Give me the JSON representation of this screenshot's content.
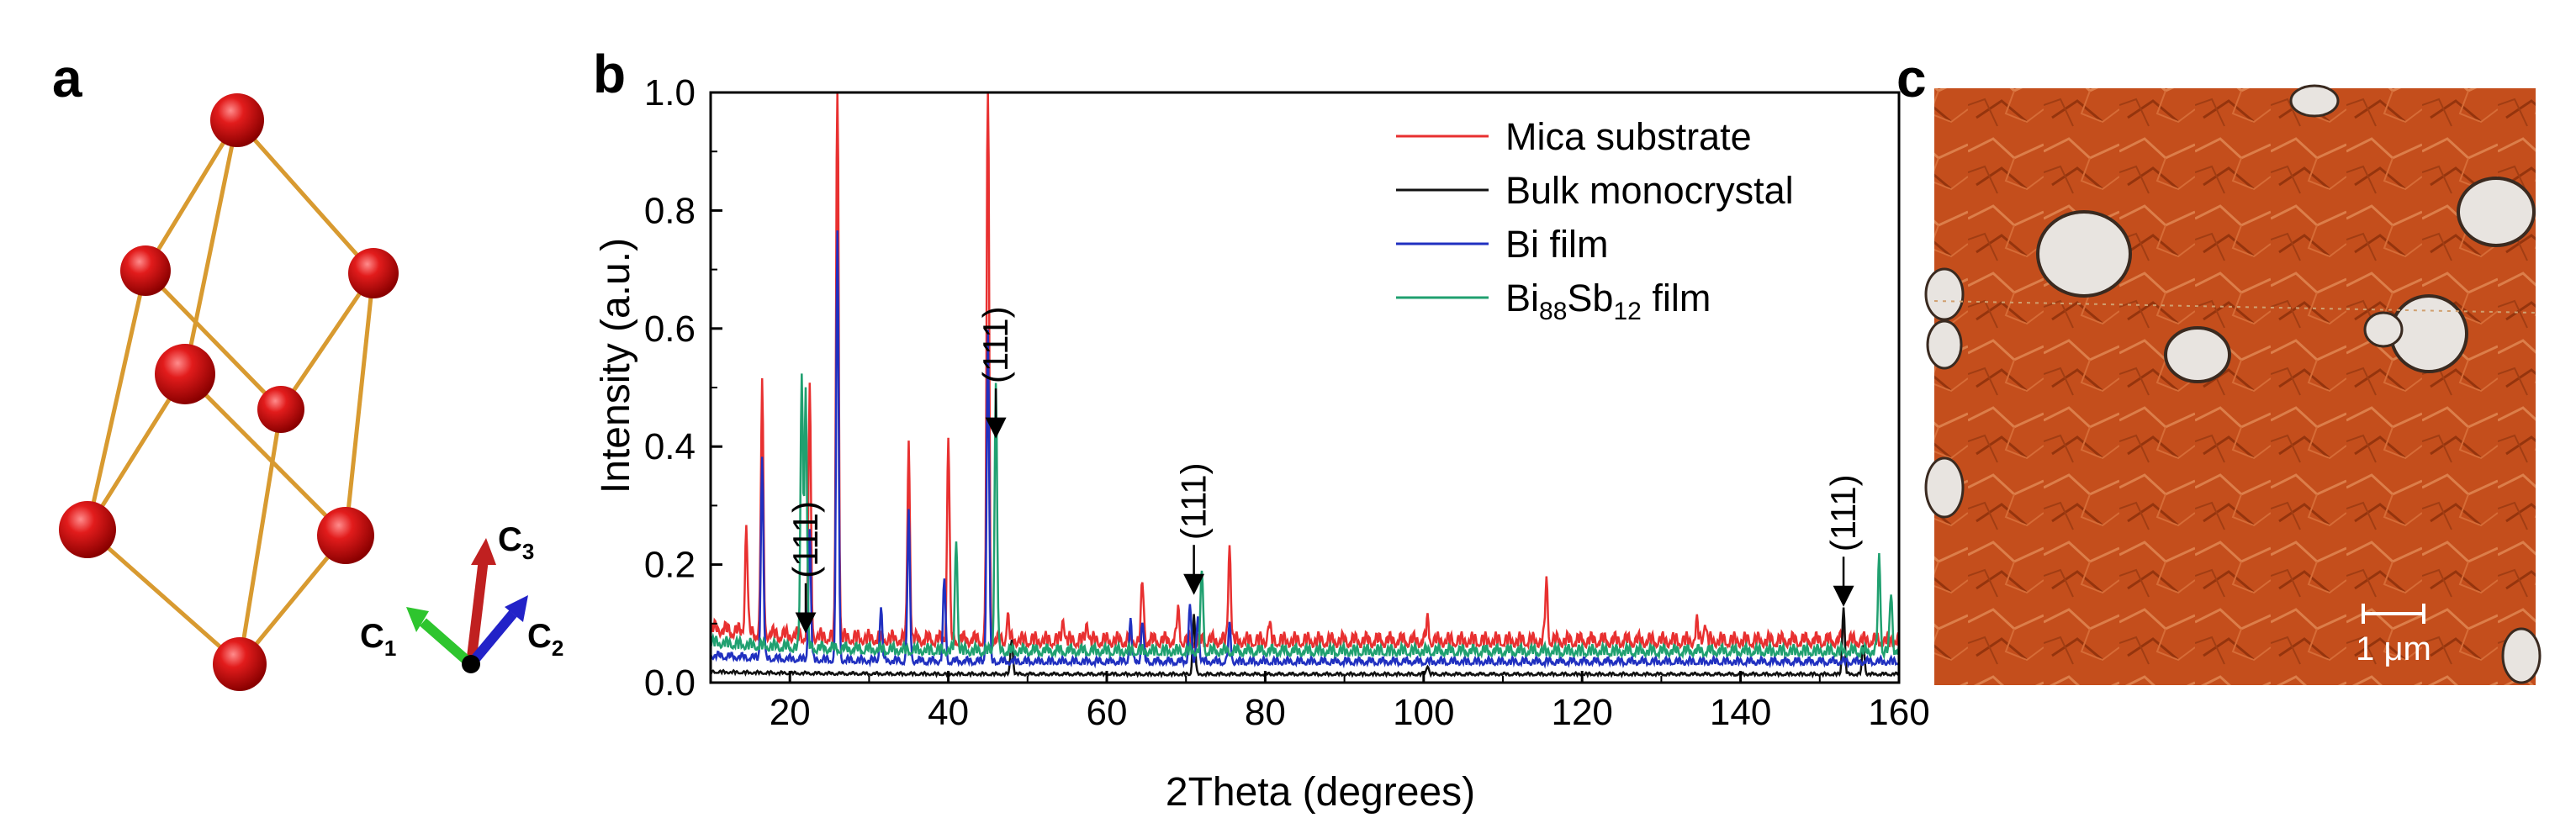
{
  "panels": {
    "a": {
      "letter": "a"
    },
    "b": {
      "letter": "b"
    },
    "c": {
      "letter": "c",
      "scale_bar_label": "1 μm"
    }
  },
  "crystal_axes": {
    "c1": {
      "main": "C",
      "sub": "1",
      "color": "#2ec52e"
    },
    "c2": {
      "main": "C",
      "sub": "2",
      "color": "#2222c8"
    },
    "c3": {
      "main": "C",
      "sub": "3",
      "color": "#c02020"
    }
  },
  "chart_data": {
    "type": "line",
    "title": "",
    "xlabel": "2Theta (degrees)",
    "ylabel": "Intensity (a.u.)",
    "xlim": [
      10,
      160
    ],
    "ylim": [
      0,
      1.0
    ],
    "xticks": [
      20,
      40,
      60,
      80,
      100,
      120,
      140,
      160
    ],
    "yticks": [
      0.0,
      0.2,
      0.4,
      0.6,
      0.8,
      1.0
    ],
    "xtick_labels": [
      "20",
      "40",
      "60",
      "80",
      "100",
      "120",
      "140",
      "160"
    ],
    "ytick_labels": [
      "0.0",
      "0.2",
      "0.4",
      "0.6",
      "0.8",
      "1.0"
    ],
    "legend_position": "top-right",
    "series": [
      {
        "name": "Mica substrate",
        "legend_main": "Mica substrate",
        "color": "#e83030",
        "baseline": 0.06,
        "peaks": [
          [
            14.5,
            0.18
          ],
          [
            16.5,
            0.42
          ],
          [
            22.5,
            0.42
          ],
          [
            26.0,
            1.0
          ],
          [
            35.0,
            0.34
          ],
          [
            40.0,
            0.35
          ],
          [
            45.0,
            1.0
          ],
          [
            47.5,
            0.04
          ],
          [
            54.5,
            0.04
          ],
          [
            57.5,
            0.035
          ],
          [
            64.5,
            0.1
          ],
          [
            69.0,
            0.05
          ],
          [
            75.5,
            0.17
          ],
          [
            80.5,
            0.03
          ],
          [
            100.5,
            0.035
          ],
          [
            115.5,
            0.1
          ],
          [
            134.5,
            0.03
          ],
          [
            135.5,
            0.035
          ],
          [
            153.0,
            0.025
          ]
        ]
      },
      {
        "name": "Bulk monocrystal",
        "legend_main": "Bulk monocrystal",
        "color": "#111111",
        "baseline": 0.012,
        "peaks": [
          [
            48.0,
            0.06
          ],
          [
            71.0,
            0.1
          ],
          [
            100.5,
            0.015
          ],
          [
            153.0,
            0.115
          ],
          [
            155.5,
            0.05
          ]
        ]
      },
      {
        "name": "Bi film",
        "legend_main": "Bi film",
        "color": "#2030c0",
        "baseline": 0.03,
        "peaks": [
          [
            16.5,
            0.34
          ],
          [
            22.5,
            0.22
          ],
          [
            26.0,
            0.72
          ],
          [
            31.5,
            0.09
          ],
          [
            35.0,
            0.25
          ],
          [
            39.5,
            0.14
          ],
          [
            45.0,
            0.56
          ],
          [
            63.0,
            0.07
          ],
          [
            64.5,
            0.07
          ],
          [
            70.5,
            0.1
          ],
          [
            71.5,
            0.08
          ],
          [
            75.5,
            0.06
          ]
        ]
      },
      {
        "name": "Bi88Sb12 film",
        "legend_main": "Bi",
        "legend_sub1": "88",
        "legend_mid": "Sb",
        "legend_sub2": "12",
        "legend_end": " film",
        "color": "#20a070",
        "baseline": 0.045,
        "peaks": [
          [
            21.5,
            0.46
          ],
          [
            22.0,
            0.44
          ],
          [
            41.0,
            0.19
          ],
          [
            46.0,
            0.45
          ],
          [
            72.0,
            0.14
          ],
          [
            157.5,
            0.16
          ],
          [
            159.0,
            0.1
          ]
        ]
      }
    ],
    "annotations": [
      {
        "text": "(111)",
        "x": 22.0,
        "y": 0.09
      },
      {
        "text": "(111)",
        "x": 46.0,
        "y": 0.42
      },
      {
        "text": "(111)",
        "x": 71.0,
        "y": 0.155
      },
      {
        "text": "(111)",
        "x": 153.0,
        "y": 0.135
      }
    ]
  }
}
